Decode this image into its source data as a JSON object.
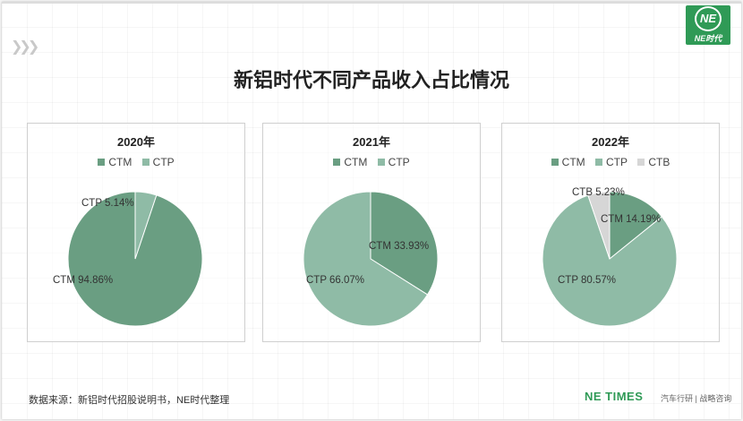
{
  "header": {
    "logo_text": "NE时代",
    "logo_glyph": "NE",
    "title": "新铝时代不同产品收入占比情况"
  },
  "colors": {
    "CTM": "#6a9e82",
    "CTP": "#8fbba6",
    "CTB": "#d6d6d6",
    "brand_green": "#2f9a56"
  },
  "chart_data": [
    {
      "type": "pie",
      "title": "2020年",
      "legend_position": "top",
      "categories": [
        "CTM",
        "CTP"
      ],
      "values": [
        94.86,
        5.14
      ],
      "labels": [
        "CTM  94.86%",
        "CTP 5.14%"
      ]
    },
    {
      "type": "pie",
      "title": "2021年",
      "legend_position": "top",
      "categories": [
        "CTM",
        "CTP"
      ],
      "values": [
        33.93,
        66.07
      ],
      "labels": [
        "CTM   33.93%",
        "CTP  66.07%"
      ]
    },
    {
      "type": "pie",
      "title": "2022年",
      "legend_position": "top",
      "categories": [
        "CTM",
        "CTP",
        "CTB"
      ],
      "values": [
        14.19,
        80.57,
        5.23
      ],
      "labels": [
        "CTM   14.19%",
        "CTP  80.57%",
        "CTB  5.23%"
      ]
    }
  ],
  "footer": {
    "source": "数据来源：新铝时代招股说明书，NE时代整理",
    "brand": "NE TIMES",
    "brand_sub": "汽车行研 | 战略咨询"
  }
}
